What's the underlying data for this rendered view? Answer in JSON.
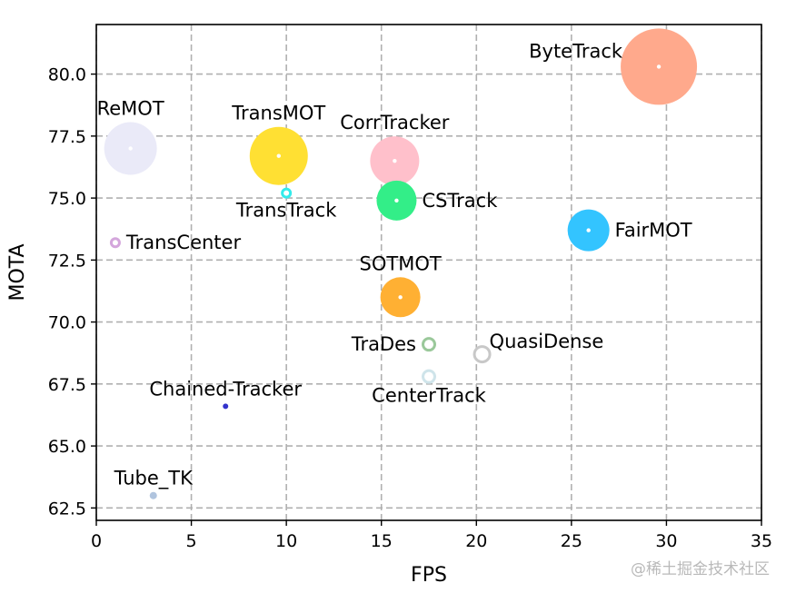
{
  "chart_data": {
    "type": "scatter",
    "xlabel": "FPS",
    "ylabel": "MOTA",
    "xlim": [
      0,
      35
    ],
    "ylim": [
      62.0,
      82.0
    ],
    "xticks": [
      0,
      5,
      10,
      15,
      20,
      25,
      30,
      35
    ],
    "yticks": [
      62.5,
      65.0,
      67.5,
      70.0,
      72.5,
      75.0,
      77.5,
      80.0
    ],
    "xtick_labels": [
      "0",
      "5",
      "10",
      "15",
      "20",
      "25",
      "30",
      "35"
    ],
    "ytick_labels": [
      "62.5",
      "65.0",
      "67.5",
      "70.0",
      "72.5",
      "75.0",
      "77.5",
      "80.0"
    ],
    "grid": true,
    "points": [
      {
        "name": "ByteTrack",
        "x": 29.6,
        "y": 80.3,
        "r": 42,
        "color": "#ffa98c",
        "ring": false,
        "label_pos": "left-above"
      },
      {
        "name": "ReMOT",
        "x": 1.8,
        "y": 77.0,
        "r": 29,
        "color": "#eaeaf8",
        "ring": false,
        "label_pos": "above"
      },
      {
        "name": "TransMOT",
        "x": 9.6,
        "y": 76.7,
        "r": 32,
        "color": "#ffe033",
        "ring": false,
        "label_pos": "above"
      },
      {
        "name": "CorrTracker",
        "x": 15.7,
        "y": 76.5,
        "r": 27,
        "color": "#ffc0cb",
        "ring": false,
        "label_pos": "above"
      },
      {
        "name": "TransTrack",
        "x": 10.0,
        "y": 75.2,
        "r": 6,
        "color": "#33ebeb",
        "ring": true,
        "label_pos": "below"
      },
      {
        "name": "CSTrack",
        "x": 15.8,
        "y": 74.9,
        "r": 22,
        "color": "#33ee88",
        "ring": false,
        "label_pos": "right"
      },
      {
        "name": "FairMOT",
        "x": 25.9,
        "y": 73.7,
        "r": 23,
        "color": "#33c4ff",
        "ring": false,
        "label_pos": "right"
      },
      {
        "name": "TransCenter",
        "x": 1.0,
        "y": 73.2,
        "r": 6,
        "color": "#d4a6dc",
        "ring": true,
        "label_pos": "right"
      },
      {
        "name": "SOTMOT",
        "x": 16.0,
        "y": 71.0,
        "r": 22,
        "color": "#ffb033",
        "ring": false,
        "label_pos": "above"
      },
      {
        "name": "TraDes",
        "x": 17.5,
        "y": 69.1,
        "r": 8,
        "color": "#9ac89a",
        "ring": true,
        "label_pos": "left"
      },
      {
        "name": "QuasiDense",
        "x": 20.3,
        "y": 68.7,
        "r": 10,
        "color": "#c8c8c8",
        "ring": true,
        "label_pos": "right-above"
      },
      {
        "name": "CenterTrack",
        "x": 17.5,
        "y": 67.8,
        "r": 8,
        "color": "#cfe4ea",
        "ring": true,
        "label_pos": "below"
      },
      {
        "name": "Chained-Tracker",
        "x": 6.8,
        "y": 66.6,
        "r": 3,
        "color": "#3333cc",
        "ring": false,
        "label_pos": "above"
      },
      {
        "name": "Tube_TK",
        "x": 3.0,
        "y": 63.0,
        "r": 4,
        "color": "#b0c4de",
        "ring": false,
        "label_pos": "above"
      }
    ]
  },
  "watermark": "@稀土掘金技术社区"
}
